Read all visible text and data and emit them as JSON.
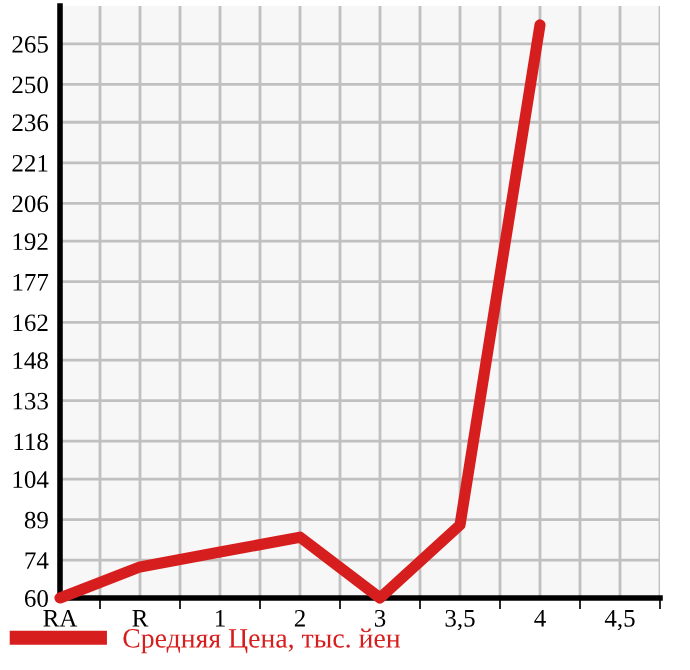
{
  "chart_data": {
    "type": "line",
    "categories": [
      "RA",
      "R",
      "1",
      "2",
      "3",
      "3,5",
      "4",
      "4,5"
    ],
    "series": [
      {
        "name": "Средняя Цена, тыс. йен",
        "color": "#d71e1e",
        "values": [
          60,
          71.5,
          77,
          82.5,
          60,
          87,
          272,
          null
        ]
      }
    ],
    "ylim": [
      60,
      279
    ],
    "yticks": [
      60,
      74,
      89,
      104,
      118,
      133,
      148,
      162,
      177,
      192,
      206,
      221,
      236,
      250,
      265
    ],
    "grid": true,
    "legend": "bottom left",
    "marker": "none",
    "line_style": "solid"
  }
}
